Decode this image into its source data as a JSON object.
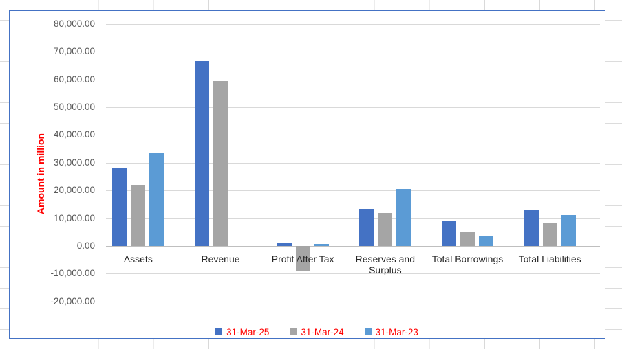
{
  "chart_data": {
    "type": "bar",
    "title": "",
    "ylabel": "Amount in million",
    "ylabel_color": "#ff0000",
    "categories": [
      "Assets",
      "Revenue",
      "Profit After Tax",
      "Reserves and Surplus",
      "Total Borrowings",
      "Total Liabilities"
    ],
    "series": [
      {
        "name": "31-Mar-25",
        "color": "#4472c4",
        "values": [
          28000,
          66500,
          1300,
          13400,
          8900,
          12900
        ]
      },
      {
        "name": "31-Mar-24",
        "color": "#a5a5a5",
        "values": [
          22100,
          59500,
          -8800,
          11900,
          5000,
          8100
        ]
      },
      {
        "name": "31-Mar-23",
        "color": "#5b9bd5",
        "values": [
          33600,
          0,
          800,
          20500,
          3800,
          11100
        ]
      }
    ],
    "ylim": [
      -20000,
      80000
    ],
    "ytick_step": 10000,
    "grid": true,
    "legend_position": "bottom",
    "legend_text_color": "#ff0000"
  },
  "axis": {
    "ytick_labels": [
      "80,000.00",
      "70,000.00",
      "60,000.00",
      "50,000.00",
      "40,000.00",
      "30,000.00",
      "20,000.00",
      "10,000.00",
      "0.00",
      "-10,000.00",
      "-20,000.00"
    ],
    "ytick_values": [
      80000,
      70000,
      60000,
      50000,
      40000,
      30000,
      20000,
      10000,
      0,
      -10000,
      -20000
    ]
  },
  "colors": {
    "chart_border": "#4472c4",
    "gridline": "#d9d9d9",
    "tick_label": "#595959",
    "category_label": "#262626"
  }
}
